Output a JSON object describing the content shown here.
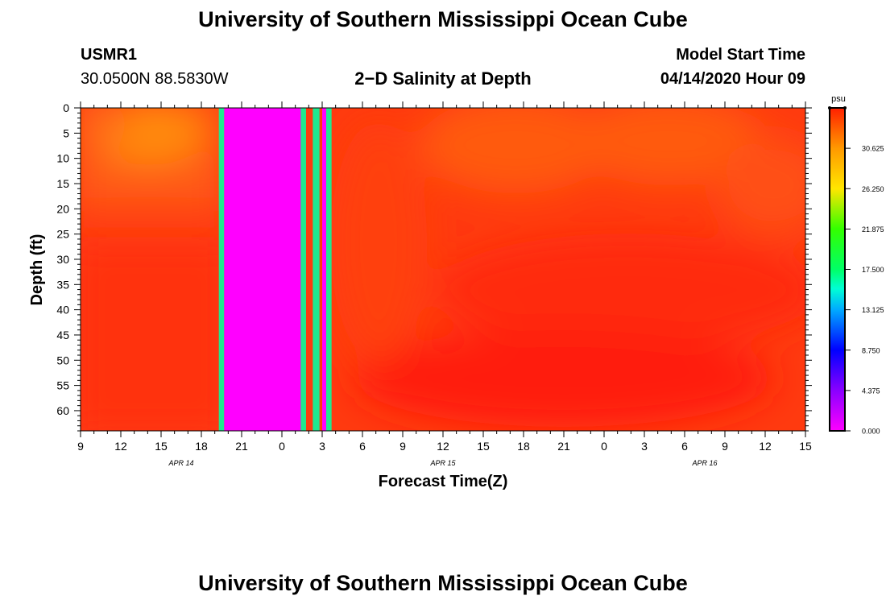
{
  "page": {
    "title_top": "University of Southern Mississippi Ocean Cube",
    "title_bottom": "University of Southern Mississippi Ocean Cube",
    "station_id": "USMR1",
    "coords": "30.0500N 88.5830W",
    "plot_title": "2−D Salinity at Depth",
    "model_label": "Model Start Time",
    "model_time": "04/14/2020 Hour 09"
  },
  "chart_data": {
    "type": "heatmap",
    "title": "2−D Salinity at Depth",
    "xlabel": "Forecast Time(Z)",
    "ylabel": "Depth (ft)",
    "units": "psu",
    "x_range_hours": [
      0,
      54
    ],
    "x_ticks": [
      {
        "h": 0,
        "label": "9"
      },
      {
        "h": 3,
        "label": "12"
      },
      {
        "h": 6,
        "label": "15"
      },
      {
        "h": 9,
        "label": "18"
      },
      {
        "h": 12,
        "label": "21"
      },
      {
        "h": 15,
        "label": "0"
      },
      {
        "h": 18,
        "label": "3"
      },
      {
        "h": 21,
        "label": "6"
      },
      {
        "h": 24,
        "label": "9"
      },
      {
        "h": 27,
        "label": "12"
      },
      {
        "h": 30,
        "label": "15"
      },
      {
        "h": 33,
        "label": "18"
      },
      {
        "h": 36,
        "label": "21"
      },
      {
        "h": 39,
        "label": "0"
      },
      {
        "h": 42,
        "label": "3"
      },
      {
        "h": 45,
        "label": "6"
      },
      {
        "h": 48,
        "label": "9"
      },
      {
        "h": 51,
        "label": "12"
      },
      {
        "h": 54,
        "label": "15"
      }
    ],
    "date_labels": [
      {
        "h": 7.5,
        "label": "APR 14"
      },
      {
        "h": 27,
        "label": "APR 15"
      },
      {
        "h": 46.5,
        "label": "APR 16"
      }
    ],
    "y_range_ft": [
      0,
      64
    ],
    "y_ticks": [
      0,
      5,
      10,
      15,
      20,
      25,
      30,
      35,
      40,
      45,
      50,
      55,
      60
    ],
    "colorbar": {
      "min": 0,
      "max": 35,
      "ticks": [
        "0.000",
        "4.375",
        "8.750",
        "13.125",
        "17.500",
        "21.875",
        "26.250",
        "30.625"
      ]
    },
    "field_description": "Salinity mostly 31-34 psu; fresher (about 30-31 psu) near surface Apr 14 12Z-17Z and weaker surface minima late Apr 15 / early Apr 16; missing-data columns shown as 0 psu around Apr 14 19Z-Apr 15 03Z",
    "data_columns": [
      {
        "from_h": 10.3,
        "to_h": 10.7,
        "value": 17.5
      },
      {
        "from_h": 10.7,
        "to_h": 16.4,
        "value": 0.0
      },
      {
        "from_h": 16.4,
        "to_h": 16.8,
        "value": 17.5
      },
      {
        "from_h": 17.3,
        "to_h": 17.8,
        "value": 17.5
      },
      {
        "from_h": 18.0,
        "to_h": 18.3,
        "value": 0.0
      },
      {
        "from_h": 18.3,
        "to_h": 18.7,
        "value": 17.5
      }
    ]
  }
}
